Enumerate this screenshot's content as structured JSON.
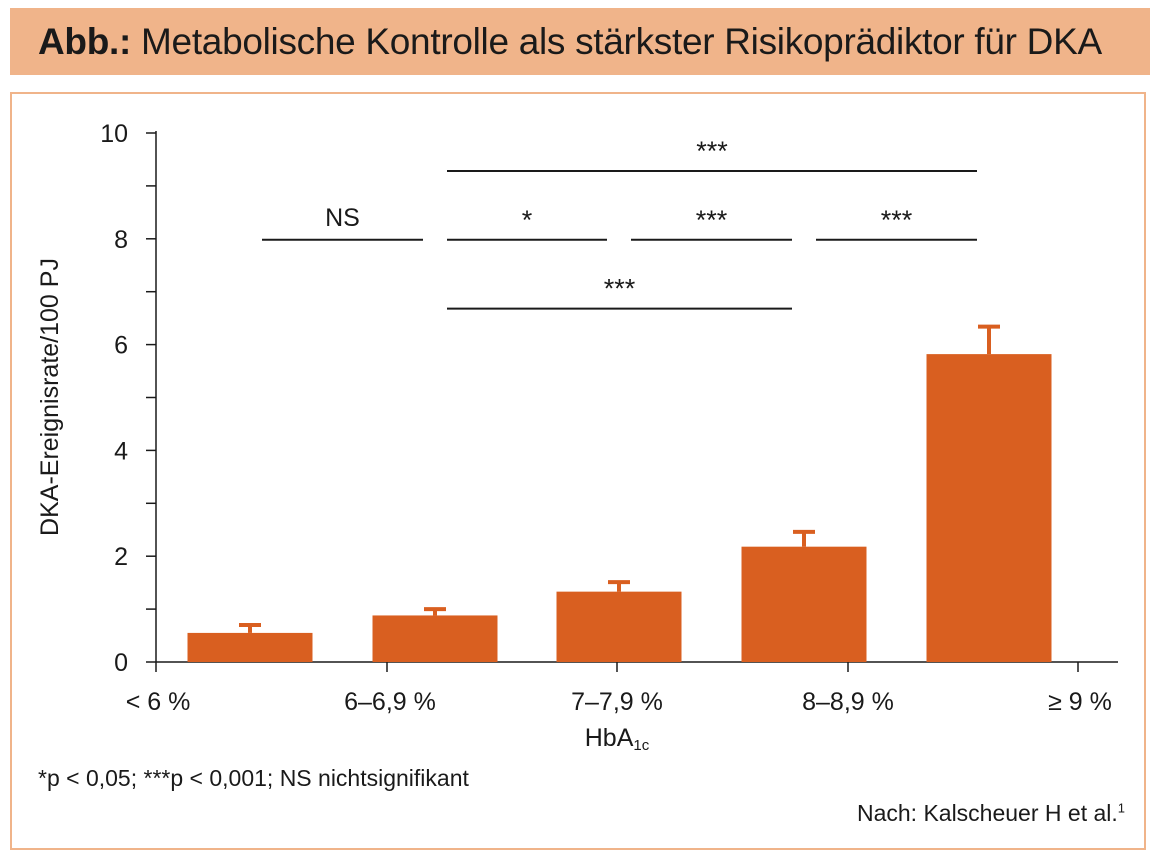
{
  "header": {
    "prefix": "Abb.:",
    "title": "Metabolische Kontrolle als stärkster Risikoprädiktor für DKA"
  },
  "footnote": "*p < 0,05; ***p < 0,001; NS nichtsignifikant",
  "source": {
    "text": "Nach: Kalscheuer H et al.",
    "ref": "1"
  },
  "colors": {
    "bar": "#d95f20",
    "header": "#f0b48a",
    "axis": "#1a1a1a"
  },
  "chart_data": {
    "type": "bar",
    "categories": [
      "< 6 %",
      "6–6,9 %",
      "7–7,9 %",
      "8–8,9 %",
      "≥ 9 %"
    ],
    "values": [
      0.55,
      0.88,
      1.33,
      2.18,
      5.82
    ],
    "errors": [
      0.15,
      0.12,
      0.18,
      0.28,
      0.52
    ],
    "xlabel": "HbA",
    "xlabel_sub": "1c",
    "ylabel": "DKA-Ereignisrate/100 PJ",
    "ylim": [
      0,
      10
    ],
    "yticks": [
      0,
      2,
      4,
      6,
      8,
      10
    ],
    "significance": [
      {
        "from": 0,
        "to": 1,
        "label": "NS",
        "level": 8
      },
      {
        "from": 1,
        "to": 2,
        "label": "*",
        "level": 8
      },
      {
        "from": 2,
        "to": 3,
        "label": "***",
        "level": 8
      },
      {
        "from": 3,
        "to": 4,
        "label": "***",
        "level": 8
      },
      {
        "from": 1,
        "to": 4,
        "label": "***",
        "level": 9.3
      },
      {
        "from": 1,
        "to": 3,
        "label": "***",
        "level": 6.7
      }
    ]
  }
}
